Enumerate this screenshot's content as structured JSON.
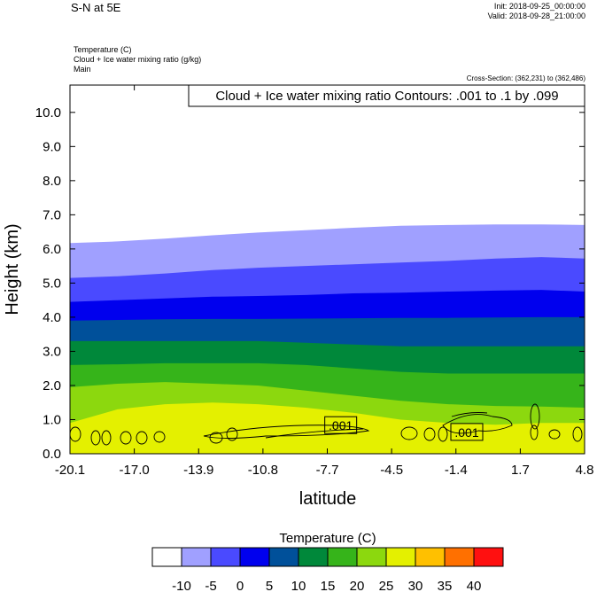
{
  "header": {
    "title": "S-N at 5E",
    "init": "Init: 2018-09-25_00:00:00",
    "valid": "Valid: 2018-09-28_21:00:00",
    "variables": [
      "Temperature   (C)",
      "Cloud + Ice water mixing ratio   (g/kg)",
      "Main"
    ],
    "cross_section": "Cross-Section: (362,231) to (362,486)"
  },
  "chart_data": {
    "type": "area",
    "xlabel": "latitude",
    "ylabel": "Height (km)",
    "contour_label": "Cloud + Ice water mixing ratio Contours: .001 to .1 by .099",
    "x_ticks": [
      "-20.1",
      "-17.0",
      "-13.9",
      "-10.8",
      "-7.7",
      "-4.5",
      "-1.4",
      "1.7",
      "4.8"
    ],
    "xlim": [
      -20.1,
      4.8
    ],
    "y_ticks": [
      "0.0",
      "1.0",
      "2.0",
      "3.0",
      "4.0",
      "5.0",
      "6.0",
      "7.0",
      "8.0",
      "9.0",
      "10.0"
    ],
    "ylim": [
      0,
      10.8
    ],
    "temperature_bands": [
      {
        "range": "-10 to -5",
        "top_km": [
          6.17,
          6.22,
          6.3,
          6.4,
          6.48,
          6.55,
          6.62,
          6.68,
          6.7,
          6.72,
          6.72,
          6.7
        ]
      },
      {
        "range": "-5 to 0",
        "top_km": [
          5.15,
          5.2,
          5.28,
          5.38,
          5.45,
          5.5,
          5.55,
          5.6,
          5.65,
          5.72,
          5.76,
          5.72
        ]
      },
      {
        "range": "0 to 5",
        "top_km": [
          4.45,
          4.5,
          4.55,
          4.6,
          4.62,
          4.65,
          4.7,
          4.72,
          4.75,
          4.78,
          4.8,
          4.75
        ]
      },
      {
        "range": "5 to 10",
        "top_km": [
          3.9,
          3.92,
          3.94,
          3.95,
          3.95,
          3.96,
          3.97,
          3.98,
          3.98,
          3.99,
          4.0,
          4.0
        ]
      },
      {
        "range": "10 to 15",
        "top_km": [
          3.3,
          3.3,
          3.3,
          3.3,
          3.3,
          3.25,
          3.2,
          3.15,
          3.15,
          3.15,
          3.15,
          3.15
        ]
      },
      {
        "range": "15 to 20",
        "top_km": [
          2.6,
          2.62,
          2.65,
          2.65,
          2.65,
          2.6,
          2.5,
          2.4,
          2.35,
          2.35,
          2.35,
          2.35
        ]
      },
      {
        "range": "20 to 25",
        "top_km": [
          1.95,
          2.05,
          2.1,
          2.05,
          2.0,
          1.85,
          1.7,
          1.55,
          1.45,
          1.4,
          1.38,
          1.35
        ]
      },
      {
        "range": "25 to 30",
        "top_km": [
          0.9,
          1.3,
          1.45,
          1.5,
          1.45,
          1.35,
          1.2,
          1.0,
          0.9,
          0.85,
          0.9,
          0.9
        ]
      }
    ],
    "x_band_positions": [
      -20.1,
      -17.8,
      -15.5,
      -13.2,
      -11.0,
      -8.7,
      -6.4,
      -4.1,
      -1.8,
      0.5,
      2.7,
      4.8
    ],
    "contours": [
      {
        "level": ".001",
        "label_x": -7.0,
        "label_y": 0.8
      },
      {
        "level": ".001",
        "label_x": -0.9,
        "label_y": 0.6
      }
    ],
    "colorbar": {
      "title": "Temperature  (C)",
      "labels": [
        "-10",
        "-5",
        "0",
        "5",
        "10",
        "15",
        "20",
        "25",
        "30",
        "35",
        "40"
      ],
      "colors": [
        "#ffffff",
        "#a0a0ff",
        "#4a4aff",
        "#0000ee",
        "#00509a",
        "#00883a",
        "#36b41a",
        "#8cd80e",
        "#e4f000",
        "#ffc000",
        "#ff7000",
        "#ff1010"
      ]
    }
  }
}
